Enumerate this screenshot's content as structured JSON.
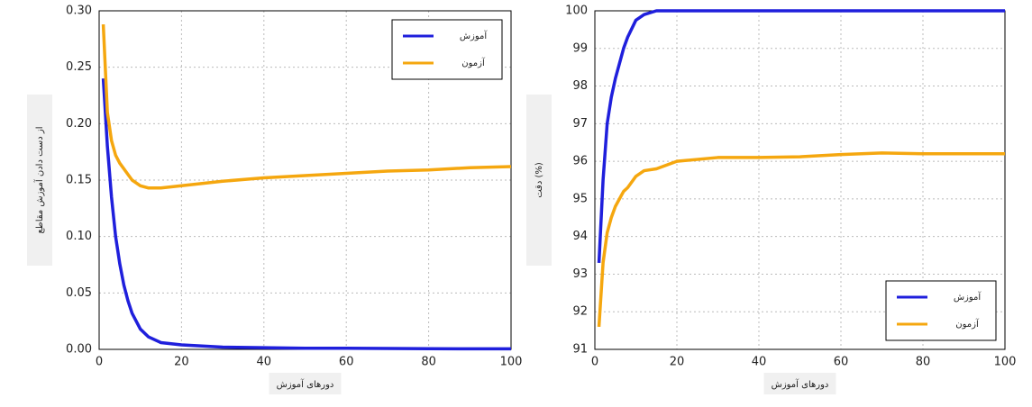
{
  "chart_data": [
    {
      "type": "line",
      "x_label": "دورهای آموزش",
      "y_label": "از دست دادن آموزش مقاطع",
      "x": [
        1,
        2,
        3,
        4,
        5,
        6,
        7,
        8,
        10,
        12,
        15,
        20,
        30,
        40,
        50,
        60,
        70,
        80,
        90,
        100
      ],
      "series": [
        {
          "name": "آموزش",
          "color": "#1f1fdc",
          "values": [
            0.24,
            0.18,
            0.135,
            0.1,
            0.076,
            0.057,
            0.043,
            0.032,
            0.018,
            0.011,
            0.006,
            0.004,
            0.002,
            0.0015,
            0.001,
            0.001,
            0.0008,
            0.0006,
            0.0005,
            0.0005
          ]
        },
        {
          "name": "آزمون",
          "color": "#f5a70f",
          "values": [
            0.288,
            0.21,
            0.185,
            0.172,
            0.165,
            0.16,
            0.155,
            0.15,
            0.145,
            0.143,
            0.143,
            0.145,
            0.149,
            0.152,
            0.154,
            0.156,
            0.158,
            0.159,
            0.161,
            0.162
          ]
        }
      ],
      "xlim": [
        0,
        100
      ],
      "xticks": [
        0,
        20,
        40,
        60,
        80,
        100
      ],
      "ylim": [
        0,
        0.3
      ],
      "yticks": [
        {
          "value": 0,
          "label": "0.00"
        },
        0.05,
        {
          "value": 0.1,
          "label": "0.10"
        },
        0.15,
        {
          "value": 0.2,
          "label": "0.20"
        },
        0.25,
        {
          "value": 0.3,
          "label": "0.30"
        }
      ],
      "grid": true,
      "legend": "upper right"
    },
    {
      "type": "line",
      "x_label": "دورهای آموزش",
      "y_label": "دقت (%)",
      "x": [
        1,
        2,
        3,
        4,
        5,
        6,
        7,
        8,
        10,
        12,
        15,
        20,
        30,
        40,
        50,
        60,
        70,
        80,
        90,
        100
      ],
      "series": [
        {
          "name": "آموزش",
          "color": "#1f1fdc",
          "values": [
            93.3,
            95.5,
            97.0,
            97.7,
            98.2,
            98.6,
            99.0,
            99.3,
            99.75,
            99.9,
            100,
            100,
            100,
            100,
            100,
            100,
            100,
            100,
            100,
            100
          ]
        },
        {
          "name": "آزمون",
          "color": "#f5a70f",
          "values": [
            91.6,
            93.3,
            94.1,
            94.5,
            94.8,
            95.0,
            95.2,
            95.3,
            95.6,
            95.75,
            95.8,
            96.0,
            96.1,
            96.1,
            96.12,
            96.18,
            96.22,
            96.2,
            96.2,
            96.2
          ]
        }
      ],
      "xlim": [
        0,
        100
      ],
      "xticks": [
        0,
        20,
        40,
        60,
        80,
        100
      ],
      "ylim": [
        91,
        100
      ],
      "yticks": [
        91,
        92,
        93,
        94,
        95,
        96,
        97,
        98,
        99,
        100
      ],
      "grid": true,
      "legend": "lower right"
    }
  ]
}
